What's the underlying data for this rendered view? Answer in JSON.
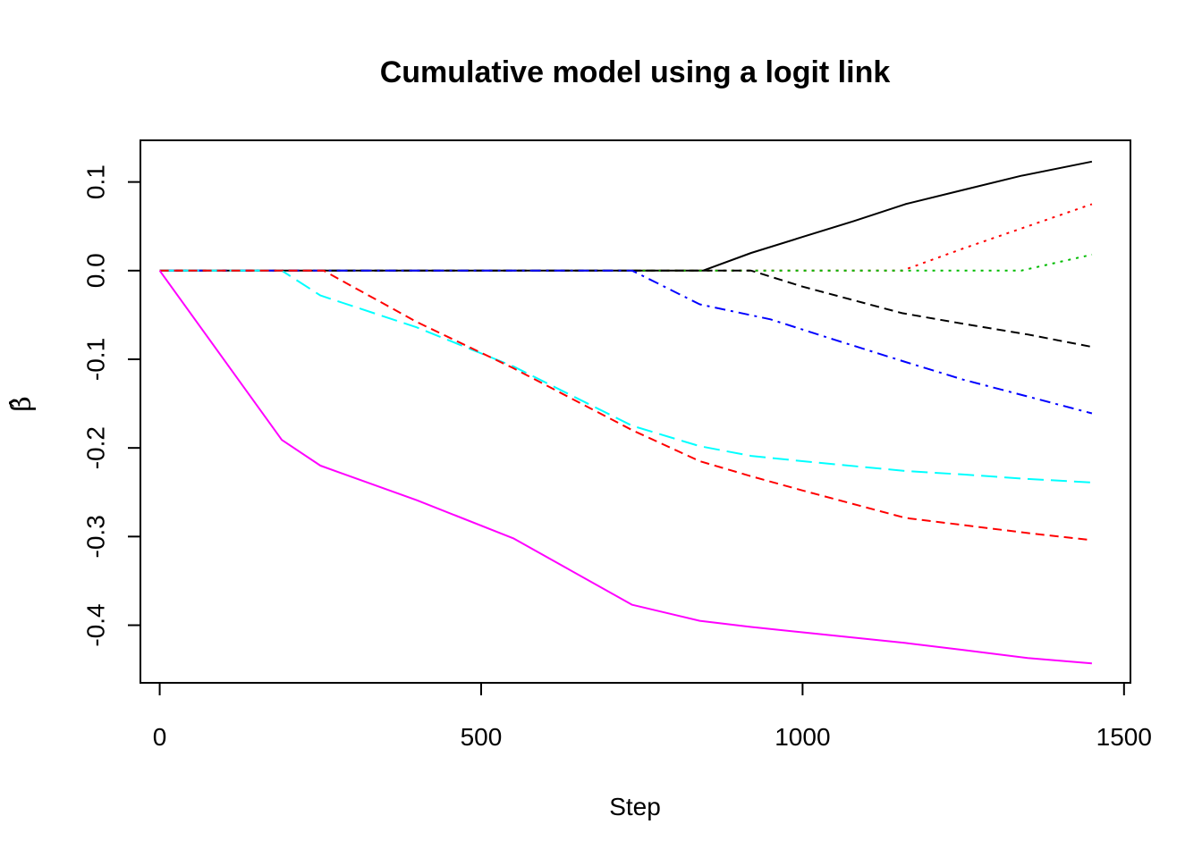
{
  "chart_data": {
    "type": "line",
    "title": "Cumulative model using a logit link",
    "xlabel": "Step",
    "ylabel": "β̂",
    "xlim": [
      -30,
      1510
    ],
    "ylim": [
      -0.465,
      0.147
    ],
    "xticks": [
      0,
      500,
      1000,
      1500
    ],
    "xtick_labels": [
      "0",
      "500",
      "1000",
      "1500"
    ],
    "yticks": [
      -0.4,
      -0.3,
      -0.2,
      -0.1,
      0.0,
      0.1
    ],
    "ytick_labels": [
      "-0.4",
      "-0.3",
      "-0.2",
      "-0.1",
      "0.0",
      "0.1"
    ],
    "grid": false,
    "legend": "none",
    "series": [
      {
        "color": "#000000",
        "dash": "solid",
        "x": [
          0,
          845,
          920,
          1000,
          1080,
          1160,
          1250,
          1340,
          1450
        ],
        "y": [
          0,
          0,
          0.02,
          0.038,
          0.056,
          0.075,
          0.091,
          0.107,
          0.123
        ]
      },
      {
        "color": "#ff0000",
        "dash": "dotted",
        "x": [
          0,
          1155,
          1250,
          1350,
          1450
        ],
        "y": [
          0,
          0,
          0.025,
          0.05,
          0.075
        ]
      },
      {
        "color": "#00bb00",
        "dash": "dotted",
        "x": [
          0,
          1340,
          1450
        ],
        "y": [
          0,
          0,
          0.018
        ]
      },
      {
        "color": "#000000",
        "dash": "dashed",
        "x": [
          0,
          920,
          1000,
          1155,
          1250,
          1350,
          1450
        ],
        "y": [
          0,
          0,
          -0.018,
          -0.048,
          -0.06,
          -0.072,
          -0.086
        ]
      },
      {
        "color": "#0000ff",
        "dash": "dotdash",
        "x": [
          0,
          735,
          840,
          950,
          1050,
          1160,
          1250,
          1350,
          1450
        ],
        "y": [
          0,
          0,
          -0.038,
          -0.055,
          -0.078,
          -0.103,
          -0.123,
          -0.142,
          -0.161
        ]
      },
      {
        "color": "#00ffff",
        "dash": "longdash",
        "x": [
          0,
          190,
          250,
          400,
          550,
          735,
          840,
          920,
          1000,
          1160,
          1250,
          1350,
          1450
        ],
        "y": [
          0,
          0,
          -0.028,
          -0.064,
          -0.108,
          -0.175,
          -0.198,
          -0.209,
          -0.215,
          -0.226,
          -0.23,
          -0.235,
          -0.239
        ]
      },
      {
        "color": "#ff0000",
        "dash": "dashed",
        "x": [
          0,
          255,
          400,
          550,
          735,
          840,
          920,
          1000,
          1160,
          1250,
          1350,
          1450
        ],
        "y": [
          0,
          0,
          -0.058,
          -0.11,
          -0.18,
          -0.215,
          -0.232,
          -0.248,
          -0.279,
          -0.287,
          -0.296,
          -0.304
        ]
      },
      {
        "color": "#ff00ff",
        "dash": "solid",
        "x": [
          0,
          190,
          250,
          400,
          550,
          735,
          840,
          920,
          1000,
          1160,
          1250,
          1350,
          1450
        ],
        "y": [
          0,
          -0.191,
          -0.22,
          -0.259,
          -0.302,
          -0.377,
          -0.395,
          -0.402,
          -0.408,
          -0.42,
          -0.428,
          -0.437,
          -0.443
        ]
      }
    ]
  }
}
